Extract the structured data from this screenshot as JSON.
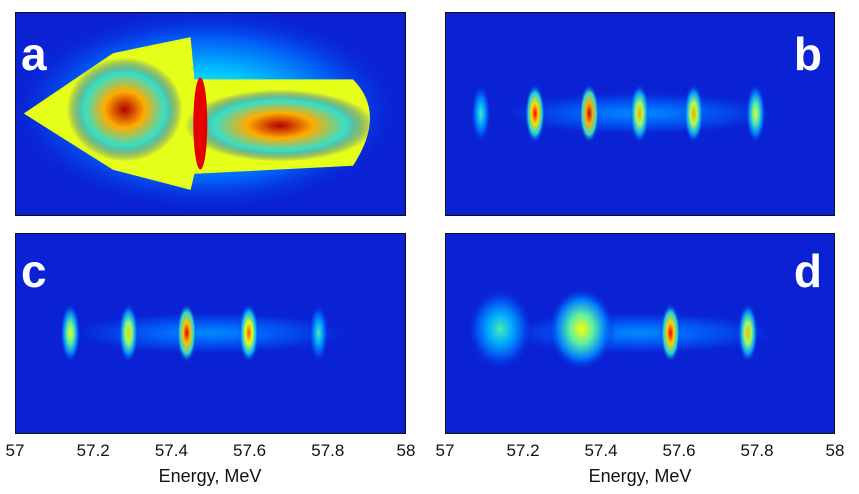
{
  "chart_data": [
    {
      "type": "heatmap",
      "panel_label": "a",
      "colormap": [
        "#00007f",
        "#0a1fd2",
        "#0066ff",
        "#00c8ff",
        "#7fff7f",
        "#ffff00",
        "#ff8800",
        "#ff0000",
        "#7f0000"
      ],
      "xlabel": "",
      "ylabel": "",
      "features": [
        {
          "kind": "broad-continuum",
          "x_range": [
            57.0,
            57.92
          ],
          "peak_intensity": 0.95
        }
      ]
    },
    {
      "type": "heatmap",
      "panel_label": "b",
      "colormap": [
        "#00007f",
        "#0a1fd2",
        "#0066ff",
        "#00c8ff",
        "#7fff7f",
        "#ffff00",
        "#ff8800",
        "#ff0000",
        "#7f0000"
      ],
      "xlabel": "",
      "ylabel": "",
      "features": [
        {
          "kind": "line",
          "x": 57.09,
          "intensity": 0.45
        },
        {
          "kind": "line",
          "x": 57.23,
          "intensity": 0.88
        },
        {
          "kind": "line",
          "x": 57.37,
          "intensity": 0.95
        },
        {
          "kind": "line",
          "x": 57.5,
          "intensity": 0.72
        },
        {
          "kind": "line",
          "x": 57.64,
          "intensity": 0.72
        },
        {
          "kind": "line",
          "x": 57.8,
          "intensity": 0.6
        }
      ]
    },
    {
      "type": "heatmap",
      "panel_label": "c",
      "colormap": [
        "#00007f",
        "#0a1fd2",
        "#0066ff",
        "#00c8ff",
        "#7fff7f",
        "#ffff00",
        "#ff8800",
        "#ff0000",
        "#7f0000"
      ],
      "xlabel": "Energy, MeV",
      "ylabel": "",
      "xticks": [
        "57",
        "57.2",
        "57.4",
        "57.6",
        "57.8",
        "58"
      ],
      "xlim": [
        57,
        58
      ],
      "features": [
        {
          "kind": "line",
          "x": 57.14,
          "intensity": 0.62
        },
        {
          "kind": "line",
          "x": 57.29,
          "intensity": 0.68
        },
        {
          "kind": "line",
          "x": 57.44,
          "intensity": 0.92
        },
        {
          "kind": "line",
          "x": 57.6,
          "intensity": 0.8
        },
        {
          "kind": "line",
          "x": 57.78,
          "intensity": 0.45
        }
      ]
    },
    {
      "type": "heatmap",
      "panel_label": "d",
      "colormap": [
        "#00007f",
        "#0a1fd2",
        "#0066ff",
        "#00c8ff",
        "#7fff7f",
        "#ffff00",
        "#ff8800",
        "#ff0000",
        "#7f0000"
      ],
      "xlabel": "Energy, MeV",
      "ylabel": "",
      "xticks": [
        "57",
        "57.2",
        "57.4",
        "57.6",
        "57.8",
        "58"
      ],
      "xlim": [
        57,
        58
      ],
      "features": [
        {
          "kind": "broad-line",
          "x": 57.14,
          "intensity": 0.45
        },
        {
          "kind": "broad-line",
          "x": 57.35,
          "intensity": 0.62
        },
        {
          "kind": "line",
          "x": 57.58,
          "intensity": 0.9
        },
        {
          "kind": "line",
          "x": 57.78,
          "intensity": 0.7
        }
      ]
    }
  ]
}
